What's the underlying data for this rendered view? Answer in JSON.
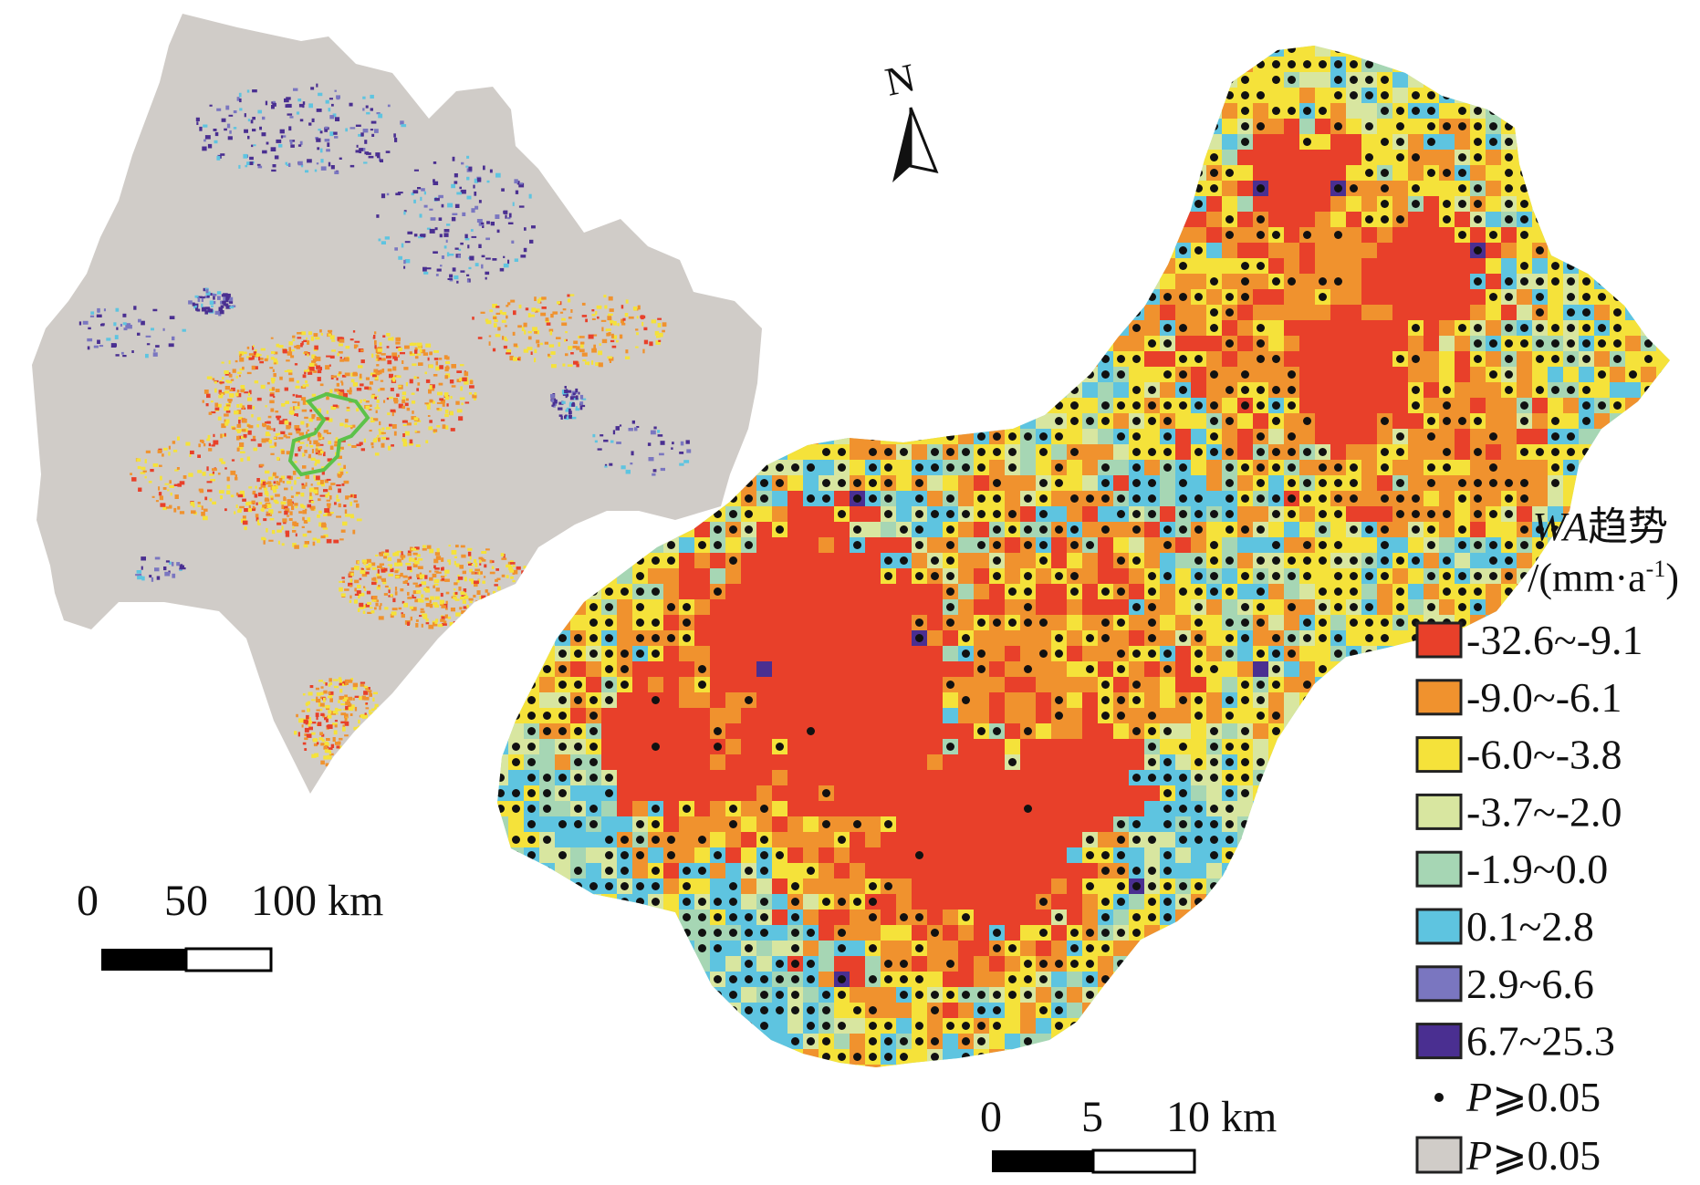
{
  "overview_map": {
    "scale_bar": {
      "ticks": [
        "0",
        "50",
        "100 km"
      ]
    }
  },
  "detail_map": {
    "north_label": "N",
    "scale_bar": {
      "ticks": [
        "0",
        "5",
        "10 km"
      ]
    }
  },
  "legend": {
    "title_italic": "WA",
    "title_cn": "趋势",
    "unit_prefix": "/(mm·a",
    "unit_sup": "-1",
    "unit_suffix": ")",
    "classes": [
      {
        "label": "-32.6~-9.1",
        "color": "#e8402a"
      },
      {
        "label": "-9.0~-6.1",
        "color": "#f0922e"
      },
      {
        "label": "-6.0~-3.8",
        "color": "#f5e23a"
      },
      {
        "label": "-3.7~-2.0",
        "color": "#d8e6a0"
      },
      {
        "label": "-1.9~0.0",
        "color": "#a6d6b4"
      },
      {
        "label": "0.1~2.8",
        "color": "#5ec4e0"
      },
      {
        "label": "2.9~6.6",
        "color": "#7a76c0"
      },
      {
        "label": "6.7~25.3",
        "color": "#4a2f91"
      }
    ],
    "dot_item": {
      "symbol": "P",
      "rest": "⩾0.05"
    },
    "gray_item": {
      "symbol": "P",
      "rest": "⩾0.05",
      "color": "#d0ccc8"
    }
  },
  "colors": {
    "background_gray": "#d0ccc8",
    "study_outline": "#5cc24a",
    "dot": "#111111"
  }
}
